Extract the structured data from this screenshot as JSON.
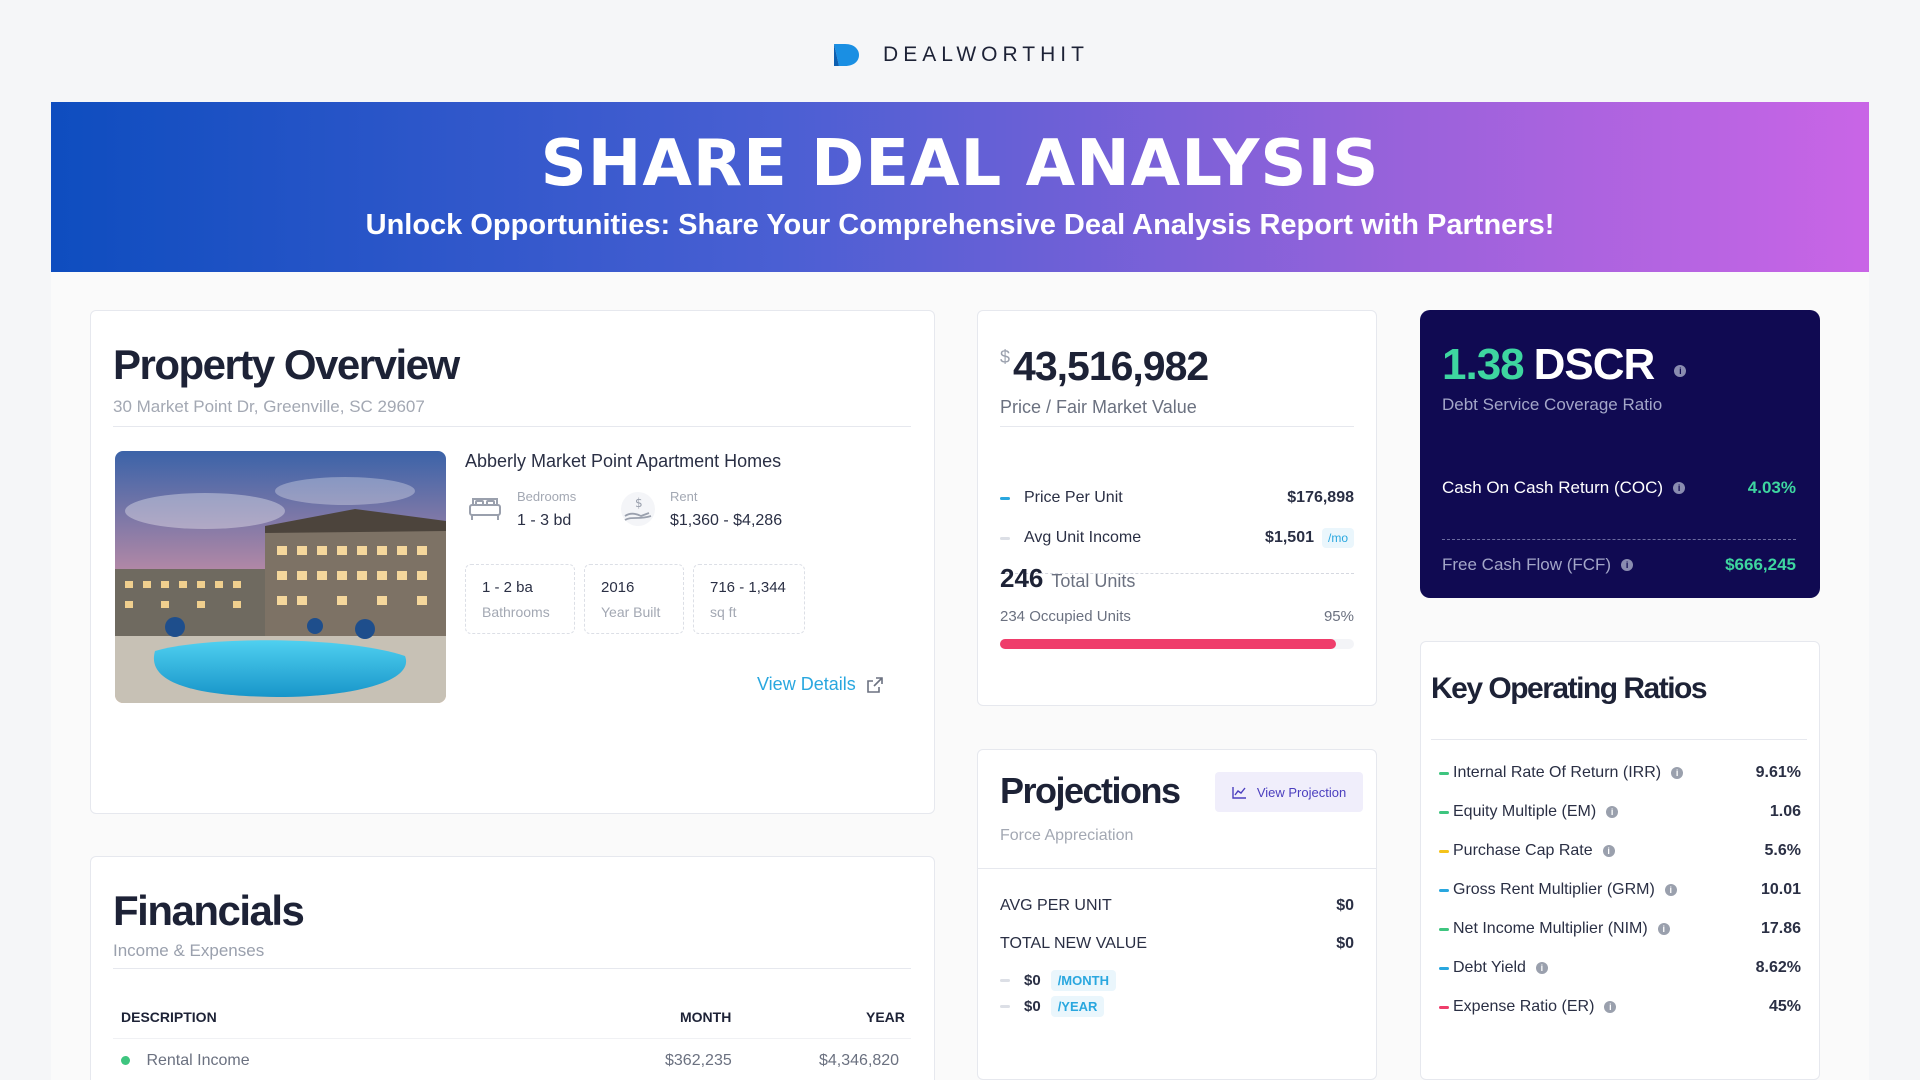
{
  "brand": {
    "name": "DEALWORTHIT",
    "accent": "#1a8fe3"
  },
  "banner": {
    "title": "SHARE DEAL ANALYSIS",
    "subtitle": "Unlock Opportunities: Share Your Comprehensive Deal Analysis Report with Partners!"
  },
  "property_overview": {
    "title": "Property Overview",
    "address": "30 Market Point Dr, Greenville, SC 29607",
    "name": "Abberly Market Point Apartment Homes",
    "bedrooms_label": "Bedrooms",
    "bedrooms_value": "1 - 3 bd",
    "rent_label": "Rent",
    "rent_value": "$1,360 - $4,286",
    "chips": [
      {
        "value": "1 - 2 ba",
        "label": "Bathrooms"
      },
      {
        "value": "2016",
        "label": "Year Built"
      },
      {
        "value": "716 - 1,344",
        "label": "sq ft"
      }
    ],
    "view_details": "View Details"
  },
  "financials": {
    "title": "Financials",
    "subtitle": "Income & Expenses",
    "columns": [
      "DESCRIPTION",
      "MONTH",
      "YEAR"
    ],
    "rows": [
      {
        "description": "Rental Income",
        "month": "$362,235",
        "year": "$4,346,820",
        "color": "#3ec57f"
      }
    ]
  },
  "price": {
    "currency": "$",
    "value": "43,516,982",
    "label": "Price / Fair Market Value",
    "items": [
      {
        "label": "Price Per Unit",
        "value": "$176,898",
        "color": "#29a7df"
      },
      {
        "label": "Avg Unit Income",
        "value": "$1,501",
        "badge": "/mo",
        "color": "#dcdfe6"
      }
    ],
    "total_units": "246",
    "total_units_label": "Total Units",
    "occupied_label": "234 Occupied Units",
    "occupied_pct": "95%",
    "occupied_fraction": 0.95,
    "bar_color": "#ef3d6b"
  },
  "projections": {
    "title": "Projections",
    "subtitle": "Force Appreciation",
    "button": "View Projection",
    "items": [
      {
        "label": "AVG PER UNIT",
        "value": "$0"
      },
      {
        "label": "TOTAL NEW VALUE",
        "value": "$0"
      }
    ],
    "periods": [
      {
        "value": "$0",
        "unit": "/MONTH"
      },
      {
        "value": "$0",
        "unit": "/YEAR"
      }
    ]
  },
  "dscr": {
    "value": "1.38",
    "label": "DSCR",
    "subtitle": "Debt Service Coverage Ratio",
    "items": [
      {
        "label": "Cash On Cash Return (COC)",
        "value": "4.03%"
      },
      {
        "label": "Free Cash Flow (FCF)",
        "value": "$666,245"
      }
    ],
    "accent": "#3ed6a0"
  },
  "key_ratios": {
    "title": "Key Operating Ratios",
    "rows": [
      {
        "label": "Internal Rate Of Return (IRR)",
        "value": "9.61%",
        "color": "#3ec57f"
      },
      {
        "label": "Equity Multiple (EM)",
        "value": "1.06",
        "color": "#3ec57f"
      },
      {
        "label": "Purchase Cap Rate",
        "value": "5.6%",
        "color": "#f5c31a"
      },
      {
        "label": "Gross Rent Multiplier (GRM)",
        "value": "10.01",
        "color": "#29a7df"
      },
      {
        "label": "Net Income Multiplier (NIM)",
        "value": "17.86",
        "color": "#3ec57f"
      },
      {
        "label": "Debt Yield",
        "value": "8.62%",
        "color": "#29a7df"
      },
      {
        "label": "Expense Ratio (ER)",
        "value": "45%",
        "color": "#ef3d6b"
      }
    ]
  }
}
